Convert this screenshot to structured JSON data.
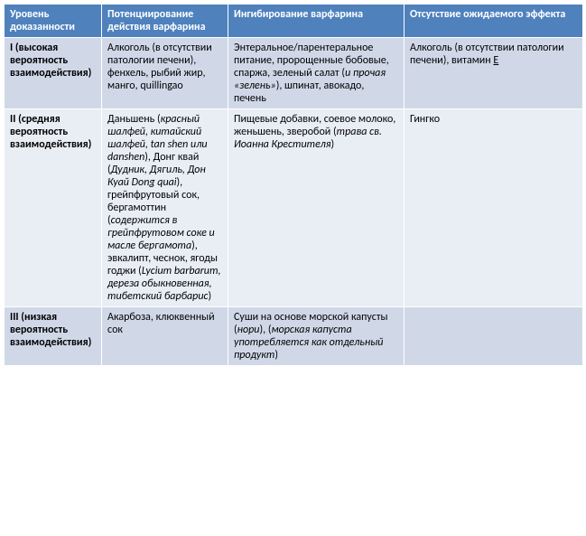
{
  "headers": [
    "Уровень доказанности",
    "Потенциирование действия варфарина",
    "Ингибирование варфарина",
    "Отсутствие ожидаемого эффекта"
  ],
  "rows": [
    {
      "level": "I (высокая вероятность взаимодействия)",
      "potentiation": "Алкоголь (в отсутствии патологии печени), фенхель, рыбий жир, манго, quillingao",
      "inhibition_pre": "Энтеральное/парентеральное питание, пророщенные бобовые, спаржа, зеленый салат (",
      "inhibition_ital": "и прочая «зелень»",
      "inhibition_post": "), шпинат, авокадо, печень",
      "absence_pre": "Алкоголь (в отсутствии патологии печени), витамин ",
      "absence_ul": "Е"
    },
    {
      "level": "II (средняя вероятность взаимодействия)",
      "pot": {
        "a1": "Даньшень (",
        "i1": "красный шалфей, китайский шалфей, tan shen или danshen",
        "a2": "), Донг квай (",
        "i2": "Дудник, Дягиль, Дон Куай Dong quai",
        "a3": "), грейпфрутовый сок, бергамоттин (",
        "i3": "содержится в грейпфрутовом соке и масле бергамота",
        "a4": "), эвкалипт, чеснок, ягоды годжи (",
        "i4": "Lycium barbarum, дереза обыкновенная, тибетский барбарис",
        "a5": ")"
      },
      "inh": {
        "a1": "Пищевые добавки, соевое молоко, женьшень, зверобой (",
        "i1": "трава св. Иоанна Крестителя",
        "a2": ")"
      },
      "absence": "Гингко"
    },
    {
      "level": "III (низкая вероятность взаимодействия)",
      "potentiation": "Акарбоза, клюквенный сок",
      "inh": {
        "a1": "Суши на основе морской капусты (",
        "i1": "нори",
        "a2": "), (",
        "i2": "морская капуста употребляется как отдельный продукт",
        "a3": ")"
      },
      "absence": ""
    }
  ]
}
